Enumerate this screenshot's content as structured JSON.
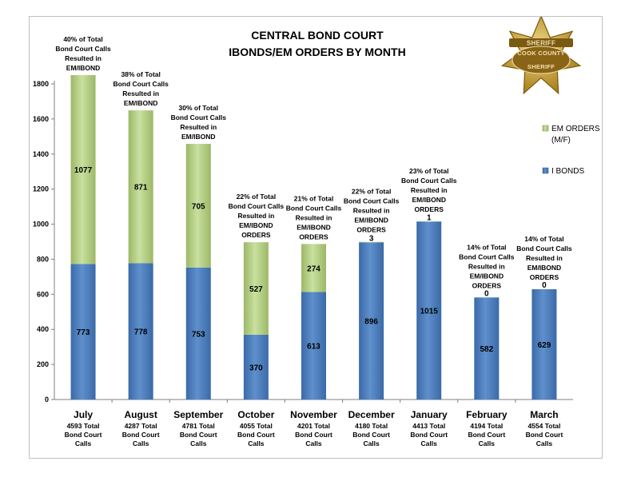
{
  "chart_data": {
    "type": "bar",
    "stacked": true,
    "title_line1": "CENTRAL BOND COURT",
    "title_line2": "IBONDS/EM ORDERS BY MONTH",
    "categories": [
      "July",
      "August",
      "September",
      "October",
      "November",
      "December",
      "January",
      "February",
      "March"
    ],
    "category_sublabels": [
      [
        "4593 Total",
        "Bond Court",
        "Calls"
      ],
      [
        "4287 Total",
        "Bond Court",
        "Calls"
      ],
      [
        "4781 Total",
        "Bond Court",
        "Calls"
      ],
      [
        "4055 Total",
        "Bond Court",
        "Calls"
      ],
      [
        "4201 Total",
        "Bond Court",
        "Calls"
      ],
      [
        "4180 Total",
        "Bond Court",
        "Calls"
      ],
      [
        "4413 Total",
        "Bond Court",
        "Calls"
      ],
      [
        "4194 Total",
        "Bond Court",
        "Calls"
      ],
      [
        "4554 Total",
        "Bond Court",
        "Calls"
      ]
    ],
    "series": [
      {
        "name": "I BONDS",
        "color": "#4f81bd",
        "values": [
          773,
          778,
          753,
          370,
          613,
          896,
          1015,
          582,
          629
        ]
      },
      {
        "name": "EM ORDERS (M/F)",
        "color": "#9bbb59",
        "values": [
          1077,
          871,
          705,
          527,
          274,
          3,
          1,
          0,
          0
        ]
      }
    ],
    "legend_lines": [
      [
        "EM ORDERS",
        "(M/F)"
      ],
      [
        "I BONDS"
      ]
    ],
    "legend_position": "right",
    "annotations": [
      [
        "40% of Total",
        "Bond Court Calls",
        "Resulted in",
        "EM/IBOND"
      ],
      [
        "38% of Total",
        "Bond Court Calls",
        "Resulted in",
        "EM/IBOND"
      ],
      [
        "30% of Total",
        "Bond Court Calls",
        "Resulted in",
        "EM/IBOND"
      ],
      [
        "22% of Total",
        "Bond Court Calls",
        "Resulted in",
        "EM/IBOND",
        "ORDERS"
      ],
      [
        "21% of Total",
        "Bond Court Calls",
        "Resulted in",
        "EM/IBOND",
        "ORDERS"
      ],
      [
        "22% of Total",
        "Bond Court Calls",
        "Resulted in",
        "EM/IBOND",
        "ORDERS"
      ],
      [
        "23% of Total",
        "Bond Court Calls",
        "Resulted in",
        "EM/IBOND",
        "ORDERS"
      ],
      [
        "14% of Total",
        "Bond Court Calls",
        "Resulted in",
        "EM/IBOND",
        "ORDERS"
      ],
      [
        "14% of Total",
        "Bond Court Calls",
        "Resulted in",
        "EM/IBOND",
        "ORDERS"
      ]
    ],
    "ylim": [
      0,
      1800
    ],
    "yticks": [
      0,
      200,
      400,
      600,
      800,
      1000,
      1200,
      1400,
      1600,
      1800
    ],
    "grid": false
  },
  "logo": {
    "name": "sheriff-badge-icon",
    "text_top": "SHERIFF",
    "text_middle": "COOK COUNTY",
    "text_bottom": "SHERIFF",
    "color": "#c8a030"
  }
}
